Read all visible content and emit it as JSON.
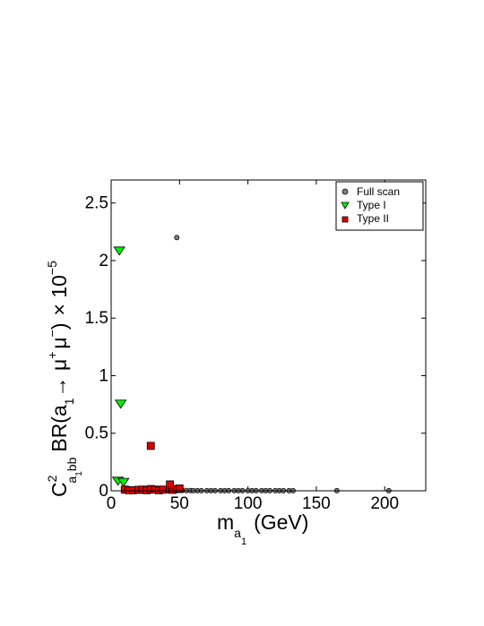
{
  "chart_data": {
    "type": "scatter",
    "xlim": [
      0,
      230
    ],
    "ylim": [
      0,
      2.7
    ],
    "xticks": [
      "0",
      "50",
      "100",
      "150",
      "200"
    ],
    "yticks": [
      "0",
      "0.5",
      "1",
      "1.5",
      "2",
      "2.5"
    ],
    "xlabel": {
      "main": "m",
      "sub1": "a",
      "sub2": "1",
      "unit": "(GeV)"
    },
    "ylabel": {
      "c": "C",
      "sup": "2",
      "sub_a": "a",
      "sub_1": "1",
      "sub_bb": "bb",
      "br": "BR(a",
      "arrow": "→ μ",
      "plus": "+",
      "mu": "μ",
      "minus": "−",
      "close": ")",
      "times": "× 10",
      "exp": "−5"
    },
    "legend_position": "top-right",
    "legend": {
      "full": "Full scan",
      "type1": "Type I",
      "type2": "Type II"
    },
    "series": [
      {
        "name": "Full scan",
        "color": "#7f7f7f",
        "marker": "circle",
        "x": [
          48,
          52,
          55,
          58,
          60,
          63,
          66,
          70,
          73,
          76,
          80,
          83,
          86,
          90,
          93,
          96,
          100,
          103,
          106,
          110,
          113,
          116,
          120,
          123,
          126,
          130,
          133,
          165,
          203
        ],
        "y": [
          2.2,
          0.003,
          0.002,
          0.002,
          0.001,
          0.001,
          0.001,
          0.001,
          0.001,
          0.001,
          0.001,
          0.001,
          0.001,
          0.001,
          0.001,
          0.001,
          0.001,
          0.001,
          0.001,
          0.001,
          0.001,
          0.001,
          0.001,
          0.001,
          0.001,
          0.001,
          0.001,
          0.001,
          0.001
        ]
      },
      {
        "name": "Type I",
        "color": "#00ee00",
        "marker": "triangle-down",
        "x": [
          6,
          7,
          5,
          9
        ],
        "y": [
          2.09,
          0.76,
          0.09,
          0.08
        ]
      },
      {
        "name": "Type II",
        "color": "#dd0000",
        "marker": "square",
        "x": [
          10,
          13,
          16,
          20,
          23,
          26,
          29,
          32,
          35,
          38,
          43,
          45,
          48,
          50,
          29,
          43
        ],
        "y": [
          0.01,
          0.005,
          0.005,
          0.008,
          0.01,
          0.005,
          0.015,
          0.01,
          0.005,
          0.01,
          0.012,
          0.008,
          0.015,
          0.02,
          0.39,
          0.055
        ]
      }
    ]
  }
}
